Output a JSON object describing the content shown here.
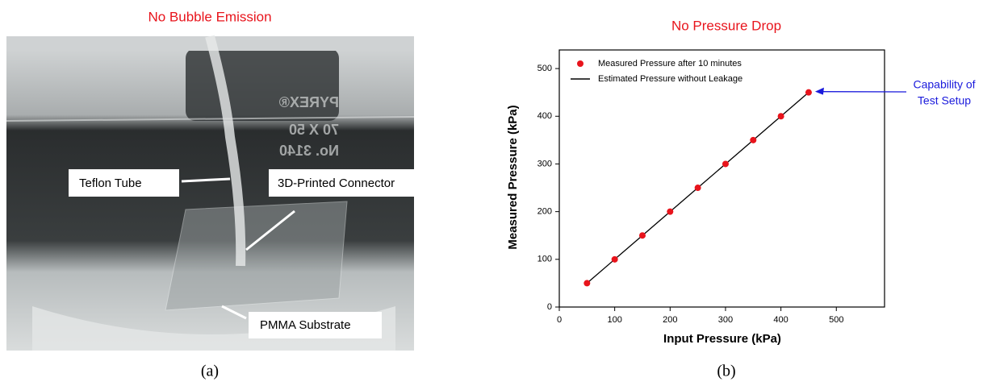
{
  "panel_a": {
    "title": "No Bubble Emission",
    "labels": [
      "Teflon Tube",
      "3D-Printed Connector",
      "PMMA Substrate"
    ],
    "beaker_marks": [
      "PYREX®",
      "70 X 50",
      "No. 3140"
    ],
    "caption": "(a)"
  },
  "chart_data": {
    "type": "scatter",
    "title": "No Pressure Drop",
    "x_label": "Input Pressure (kPa)",
    "y_label": "Measured Pressure (kPa)",
    "x": [
      50,
      100,
      150,
      200,
      250,
      300,
      350,
      400,
      450
    ],
    "series": [
      {
        "name": "Measured Pressure after 10 minutes",
        "color": "#e8141c",
        "mode": "markers",
        "values": [
          50,
          100,
          150,
          200,
          250,
          300,
          350,
          400,
          450
        ]
      },
      {
        "name": "Estimated Pressure without Leakage",
        "color": "#000000",
        "mode": "line",
        "values": [
          50,
          100,
          150,
          200,
          250,
          300,
          350,
          400,
          450
        ]
      }
    ],
    "xlim": [
      0,
      587
    ],
    "ylim": [
      0,
      539
    ],
    "xticks": [
      0,
      100,
      200,
      300,
      400,
      500
    ],
    "yticks": [
      0,
      100,
      200,
      300,
      400,
      500
    ],
    "legend": "upper left",
    "annotation": {
      "lines": [
        "Capability of",
        "Test Setup"
      ],
      "color": "#1a1adc"
    },
    "caption": "(b)"
  }
}
